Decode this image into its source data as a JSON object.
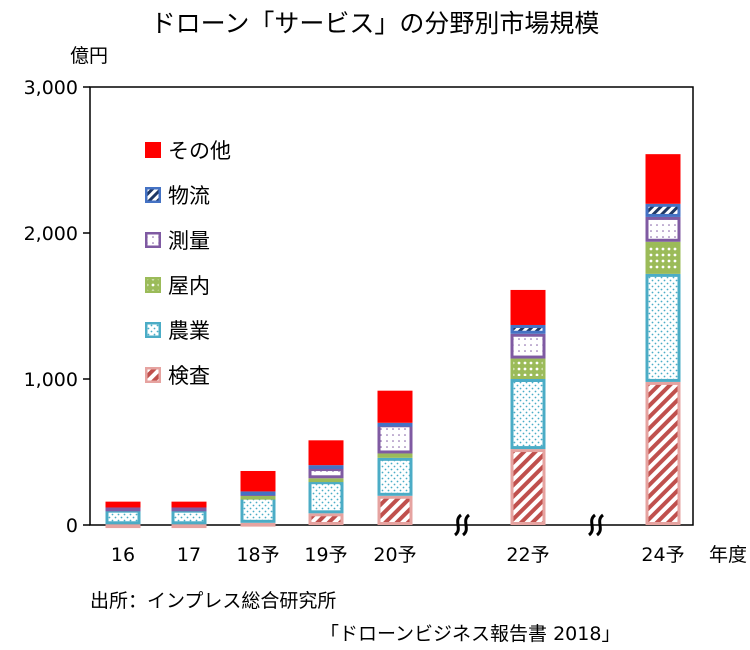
{
  "chart_data": {
    "type": "bar",
    "stacked": true,
    "title": "ドローン「サービス」の分野別市場規模",
    "ylabel": "億円",
    "xlabel": "年度",
    "ylim": [
      0,
      3000
    ],
    "yticks": [
      "0",
      "1,000",
      "2,000",
      "3,000"
    ],
    "categories": [
      "16",
      "17",
      "18予",
      "19予",
      "20予",
      "22予",
      "24予"
    ],
    "axis_break_after": [
      "20予",
      "22予"
    ],
    "series": [
      {
        "name": "検査",
        "values": [
          5,
          5,
          15,
          80,
          200,
          520,
          980
        ]
      },
      {
        "name": "農業",
        "values": [
          100,
          100,
          180,
          220,
          260,
          480,
          740
        ]
      },
      {
        "name": "屋内",
        "values": [
          0,
          0,
          5,
          20,
          30,
          140,
          220
        ]
      },
      {
        "name": "測量",
        "values": [
          15,
          15,
          25,
          70,
          200,
          170,
          170
        ]
      },
      {
        "name": "物流",
        "values": [
          0,
          0,
          5,
          20,
          10,
          60,
          90
        ]
      },
      {
        "name": "その他",
        "values": [
          40,
          40,
          140,
          170,
          220,
          240,
          340
        ]
      }
    ],
    "legend": [
      "その他",
      "物流",
      "測量",
      "屋内",
      "農業",
      "検査"
    ],
    "legend_position": "upper-left"
  },
  "source": {
    "line1": "出所：インプレス総合研究所",
    "line2": "「ドローンビジネス報告書 2018」"
  },
  "colors": {
    "その他": "#ff0000",
    "物流": "#4472c4",
    "測量": "#7f5aa2",
    "屋内": "#9bbb59",
    "農業": "#4bacc6",
    "検査": "#c0504d"
  }
}
